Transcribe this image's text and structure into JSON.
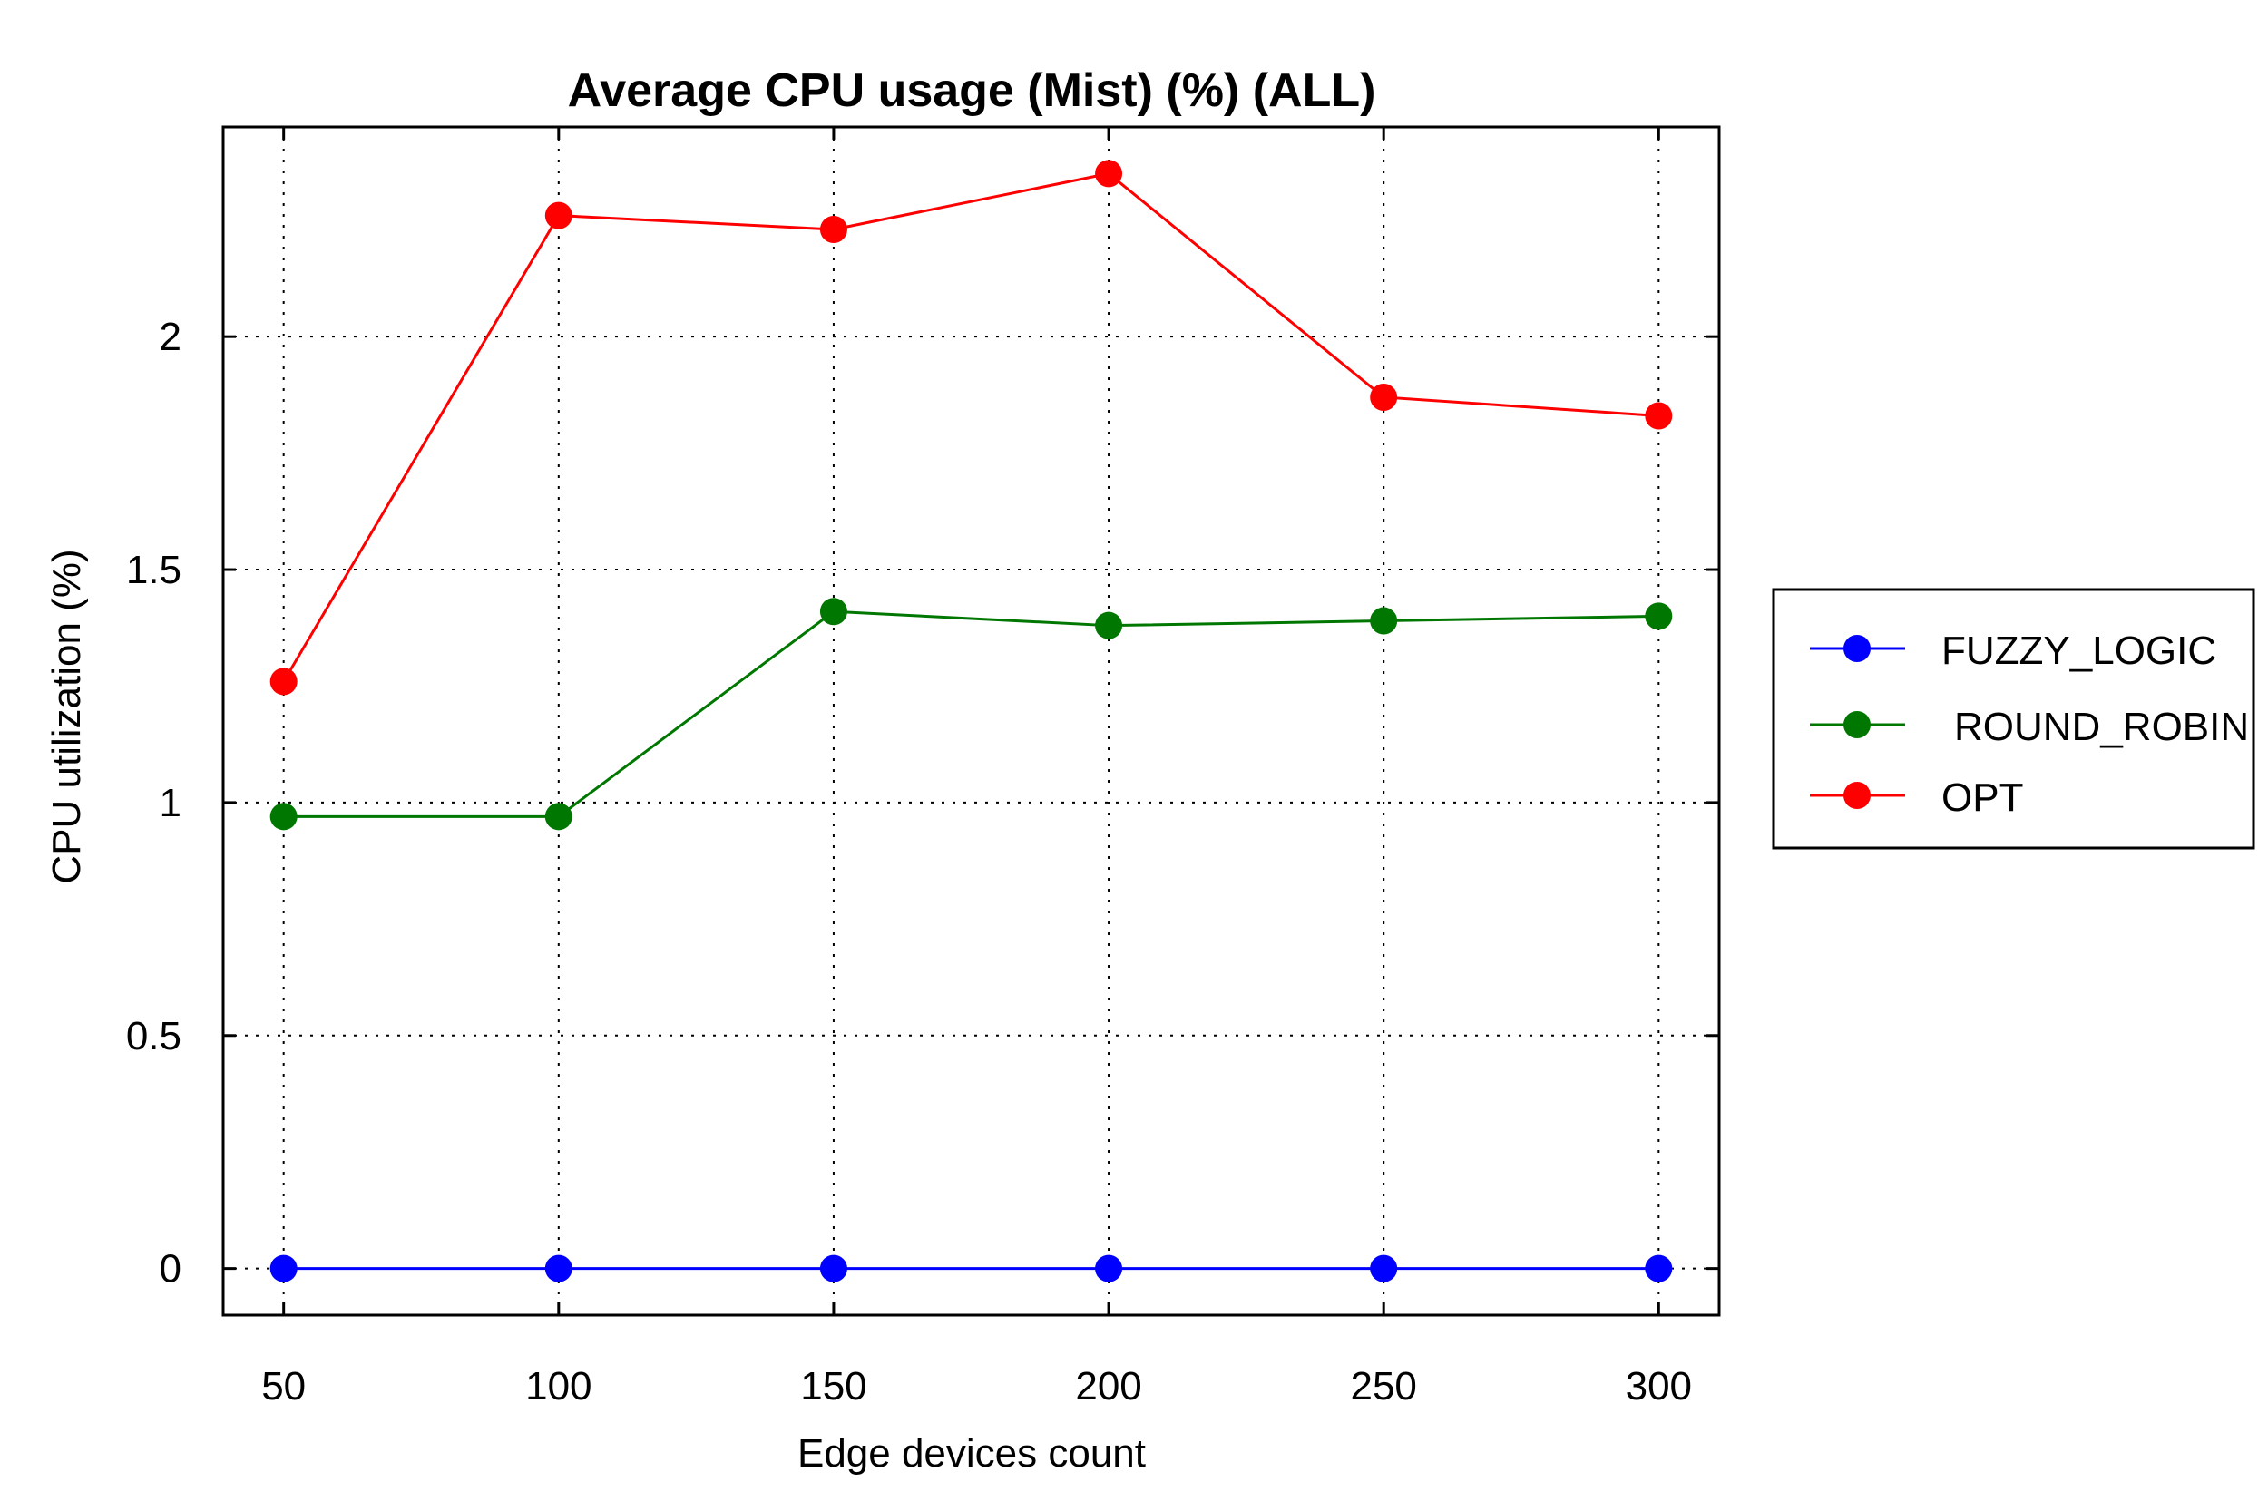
{
  "chart_data": {
    "type": "line",
    "title": "Average CPU usage (Mist) (%) (ALL)",
    "xlabel": "Edge devices count",
    "ylabel": "CPU utilization (%)",
    "x": [
      50,
      100,
      150,
      200,
      250,
      300
    ],
    "xlim": [
      39,
      311
    ],
    "ylim": [
      -0.1,
      2.45
    ],
    "x_ticks": [
      50,
      100,
      150,
      200,
      250,
      300
    ],
    "y_ticks": [
      0,
      0.5,
      1,
      1.5,
      2
    ],
    "y_tick_labels": [
      "0",
      "0.5",
      "1",
      "1.5",
      "2"
    ],
    "grid": true,
    "legend_position": "right",
    "series": [
      {
        "name": "FUZZY_LOGIC",
        "color": "#0000ff",
        "values": [
          0,
          0,
          0,
          0,
          0,
          0
        ]
      },
      {
        "name": "ROUND_ROBIN",
        "color": "#007700",
        "values": [
          0.97,
          0.97,
          1.41,
          1.38,
          1.39,
          1.4
        ]
      },
      {
        "name": "OPT",
        "color": "#ff0000",
        "values": [
          1.26,
          2.26,
          2.23,
          2.35,
          1.87,
          1.83
        ]
      }
    ]
  }
}
